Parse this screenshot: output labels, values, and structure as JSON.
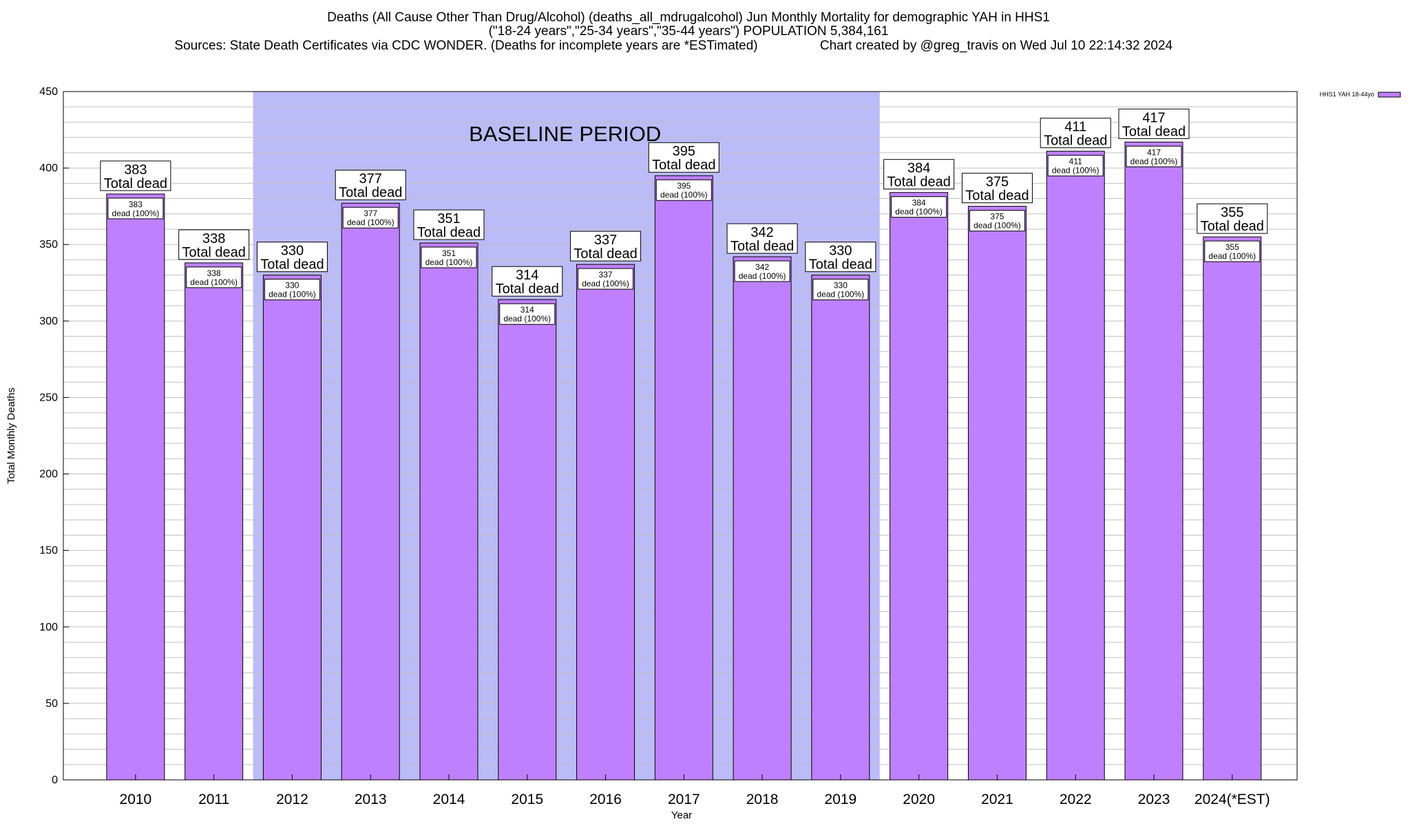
{
  "title": {
    "line1": "Deaths (All Cause Other Than Drug/Alcohol) (deaths_all_mdrugalcohol) Jun Monthly Mortality for demographic YAH in HHS1",
    "line2": "(\"18-24 years\",\"25-34 years\",\"35-44 years\") POPULATION 5,384,161",
    "line3_left": "Sources: State Death Certificates via CDC WONDER. (Deaths for incomplete years are *ESTimated)",
    "line3_right": "Chart created by @greg_travis on Wed Jul 10 22:14:32 2024"
  },
  "colors": {
    "bar": "#bf80ff",
    "baseline_shade": "#bbbbf8",
    "grid": "#c0c0c0"
  },
  "chart_data": {
    "type": "bar",
    "xlabel": "Year",
    "ylabel": "Total Monthly Deaths",
    "ylim": [
      0,
      450
    ],
    "y_ticks": [
      0,
      50,
      100,
      150,
      200,
      250,
      300,
      350,
      400,
      450
    ],
    "y_tick_labels": [
      "0",
      "50",
      "100",
      "150",
      "200",
      "250",
      "300",
      "350",
      "400",
      "450"
    ],
    "grid": true,
    "legend_position": "top-right",
    "categories": [
      "2010",
      "2011",
      "2012",
      "2013",
      "2014",
      "2015",
      "2016",
      "2017",
      "2018",
      "2019",
      "2020",
      "2021",
      "2022",
      "2023",
      "2024(*EST)"
    ],
    "series": [
      {
        "name": "HHS1 YAH 18-44yo",
        "values": [
          383,
          338,
          330,
          377,
          351,
          314,
          337,
          395,
          342,
          330,
          384,
          375,
          411,
          417,
          355
        ]
      }
    ],
    "value_labels": [
      "383",
      "338",
      "330",
      "377",
      "351",
      "314",
      "337",
      "395",
      "342",
      "330",
      "384",
      "375",
      "411",
      "417",
      "355"
    ],
    "top_label_suffix": "Total dead",
    "inner_label_suffix": "dead (100%)",
    "baseline_period": {
      "label": "BASELINE PERIOD",
      "start_category": "2012",
      "end_category": "2019"
    }
  }
}
